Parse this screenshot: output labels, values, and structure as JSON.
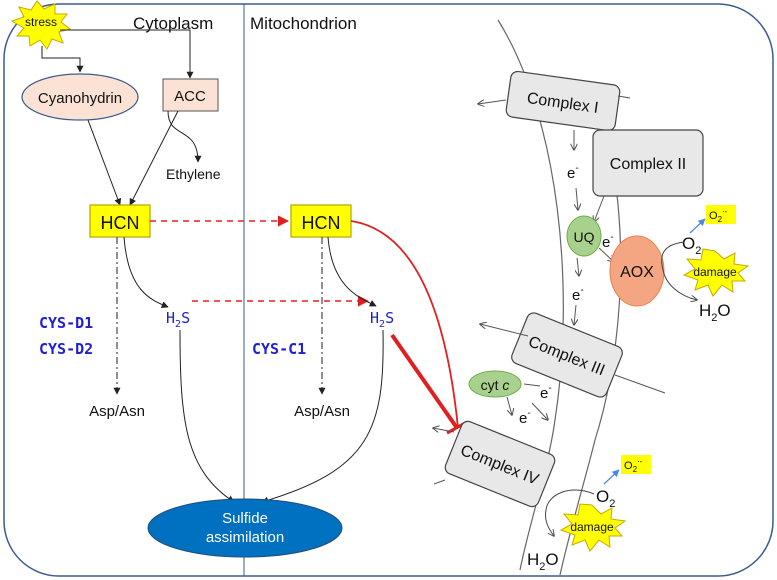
{
  "regions": {
    "cytoplasm": "Cytoplasm",
    "mitochondrion": "Mitochondrion"
  },
  "nodes": {
    "stress": "stress",
    "cyanohydrin": "Cyanohydrin",
    "acc": "ACC",
    "ethylene": "Ethylene",
    "hcn_cyto": "HCN",
    "hcn_mito": "HCN",
    "h2s_cyto": {
      "main": "H",
      "sub": "2",
      "tail": "S"
    },
    "h2s_mito": {
      "main": "H",
      "sub": "2",
      "tail": "S"
    },
    "cys_d1": "CYS-D1",
    "cys_d2": "CYS-D2",
    "cys_c1": "CYS-C1",
    "asp_asn_cyto": "Asp/Asn",
    "asp_asn_mito": "Asp/Asn",
    "sulfide": {
      "line1": "Sulfide",
      "line2": "assimilation"
    }
  },
  "etc": {
    "complex_1": "Complex I",
    "complex_2": "Complex II",
    "complex_3": "Complex III",
    "complex_4": "Complex IV",
    "uq": "UQ",
    "aox": "AOX",
    "cyt_c": {
      "main": "cyt ",
      "italic": "c"
    },
    "electron": {
      "base": "e",
      "sup": "-"
    },
    "o2": {
      "base": "O",
      "sub": "2"
    },
    "superoxide": {
      "base": "O",
      "sub": "2",
      "sup": "·-"
    },
    "h2o": {
      "base": "H",
      "sub": "2",
      "tail": "O"
    },
    "damage": "damage"
  },
  "colors": {
    "hcn_fill": "#ffff00",
    "hcn_stroke": "#b8a400",
    "enzyme_text": "#1f1fd6",
    "inhibit_red": "#e02020",
    "sulfide_fill": "#0070c0",
    "cyanohydrin_fill": "#fbe2d5",
    "acc_fill": "#fbe2d5",
    "complex_fill": "#e8e8e8",
    "uq_fill": "#a9d18e",
    "aox_fill": "#f4a582",
    "damage_fill": "#ffff00",
    "o2_arrow": "#4a86e8"
  }
}
